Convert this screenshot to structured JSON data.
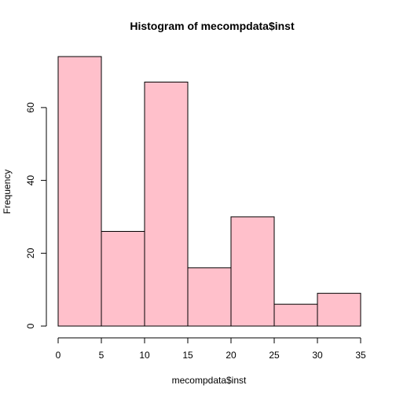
{
  "chart_data": {
    "type": "bar",
    "title": "Histogram of mecompdata$inst",
    "xlabel": "mecompdata$inst",
    "ylabel": "Frequency",
    "bins": [
      {
        "from": 0,
        "to": 5,
        "count": 74
      },
      {
        "from": 5,
        "to": 10,
        "count": 26
      },
      {
        "from": 10,
        "to": 15,
        "count": 67
      },
      {
        "from": 15,
        "to": 20,
        "count": 16
      },
      {
        "from": 20,
        "to": 25,
        "count": 30
      },
      {
        "from": 25,
        "to": 30,
        "count": 6
      },
      {
        "from": 30,
        "to": 35,
        "count": 9
      }
    ],
    "xlim": [
      0,
      35
    ],
    "ylim": [
      0,
      74
    ],
    "x_ticks": [
      0,
      5,
      10,
      15,
      20,
      25,
      30,
      35
    ],
    "y_ticks": [
      0,
      20,
      40,
      60
    ],
    "bar_fill": "#ffc0cb",
    "bar_stroke": "#000000",
    "grid": false
  }
}
